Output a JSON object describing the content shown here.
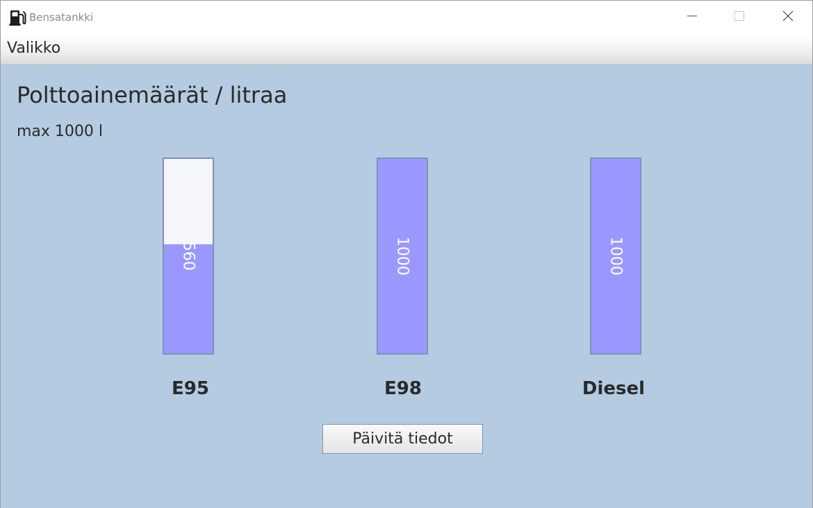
{
  "window": {
    "title": "Bensatankki",
    "icon": "fuel-pump-icon",
    "controls": [
      "minimize-icon",
      "maximize-icon",
      "close-icon"
    ]
  },
  "menu": {
    "items": [
      {
        "label": "Valikko"
      }
    ]
  },
  "main": {
    "heading": "Polttoainemäärät / litraa",
    "max_label": "max 1000 l",
    "capacity": 1000,
    "tanks": [
      {
        "name": "E95",
        "value": 560,
        "value_label": "560"
      },
      {
        "name": "E98",
        "value": 1000,
        "value_label": "1000"
      },
      {
        "name": "Diesel",
        "value": 1000,
        "value_label": "1000"
      }
    ],
    "update_button": "Päivitä tiedot"
  },
  "colors": {
    "background": "#b4cbe1",
    "fill": "#9a98ff",
    "empty": "#f5f6fa",
    "border": "#7f90b8"
  }
}
